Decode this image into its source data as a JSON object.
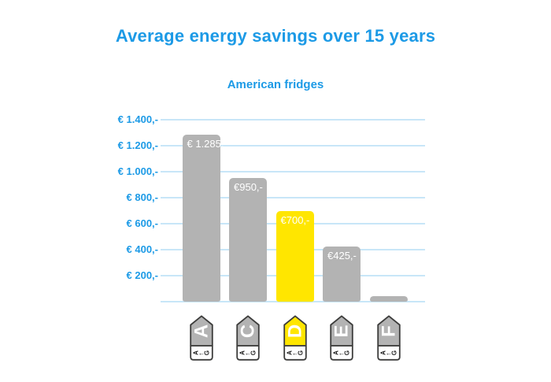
{
  "header": {
    "title": "Average energy savings over 15 years",
    "subtitle": "American fridges"
  },
  "colors": {
    "accent_blue": "#1C9AE6",
    "gridline_blue": "#C8E6F8",
    "bar_gray": "#B3B3B3",
    "bar_yellow": "#FFE600",
    "bar_label_text": "#FFFFFF",
    "tag_border": "#3C3C3B",
    "tag_letter_text": "#FFFFFF",
    "tag_scale_text": "#1A1A1A",
    "background": "#FFFFFF"
  },
  "y_axis": {
    "tick_labels": [
      "€ 1.400,-",
      "€ 1.200,-",
      "€ 1.000,-",
      "€ 800,-",
      "€ 600,-",
      "€ 400,-",
      "€ 200,-"
    ],
    "tick_values": [
      1400,
      1200,
      1000,
      800,
      600,
      400,
      200
    ]
  },
  "chart_data": {
    "type": "bar",
    "title": "Average energy savings over 15 years",
    "subtitle": "American fridges",
    "categories": [
      "A",
      "C",
      "D",
      "E",
      "F"
    ],
    "values": [
      1285,
      950,
      700,
      425,
      40
    ],
    "bar_labels": [
      "€ 1.285,-",
      "€950,-",
      "€700,-",
      "€425,-",
      ""
    ],
    "bar_colors": [
      "#B3B3B3",
      "#B3B3B3",
      "#FFE600",
      "#B3B3B3",
      "#B3B3B3"
    ],
    "highlight_category": "D",
    "energy_rating_scale": [
      "A",
      "←",
      "G"
    ],
    "xlabel": "",
    "ylabel": "",
    "ylim": [
      0,
      1400
    ],
    "y_tick_step": 200,
    "grid": "horizontal-only",
    "legend": "none"
  }
}
